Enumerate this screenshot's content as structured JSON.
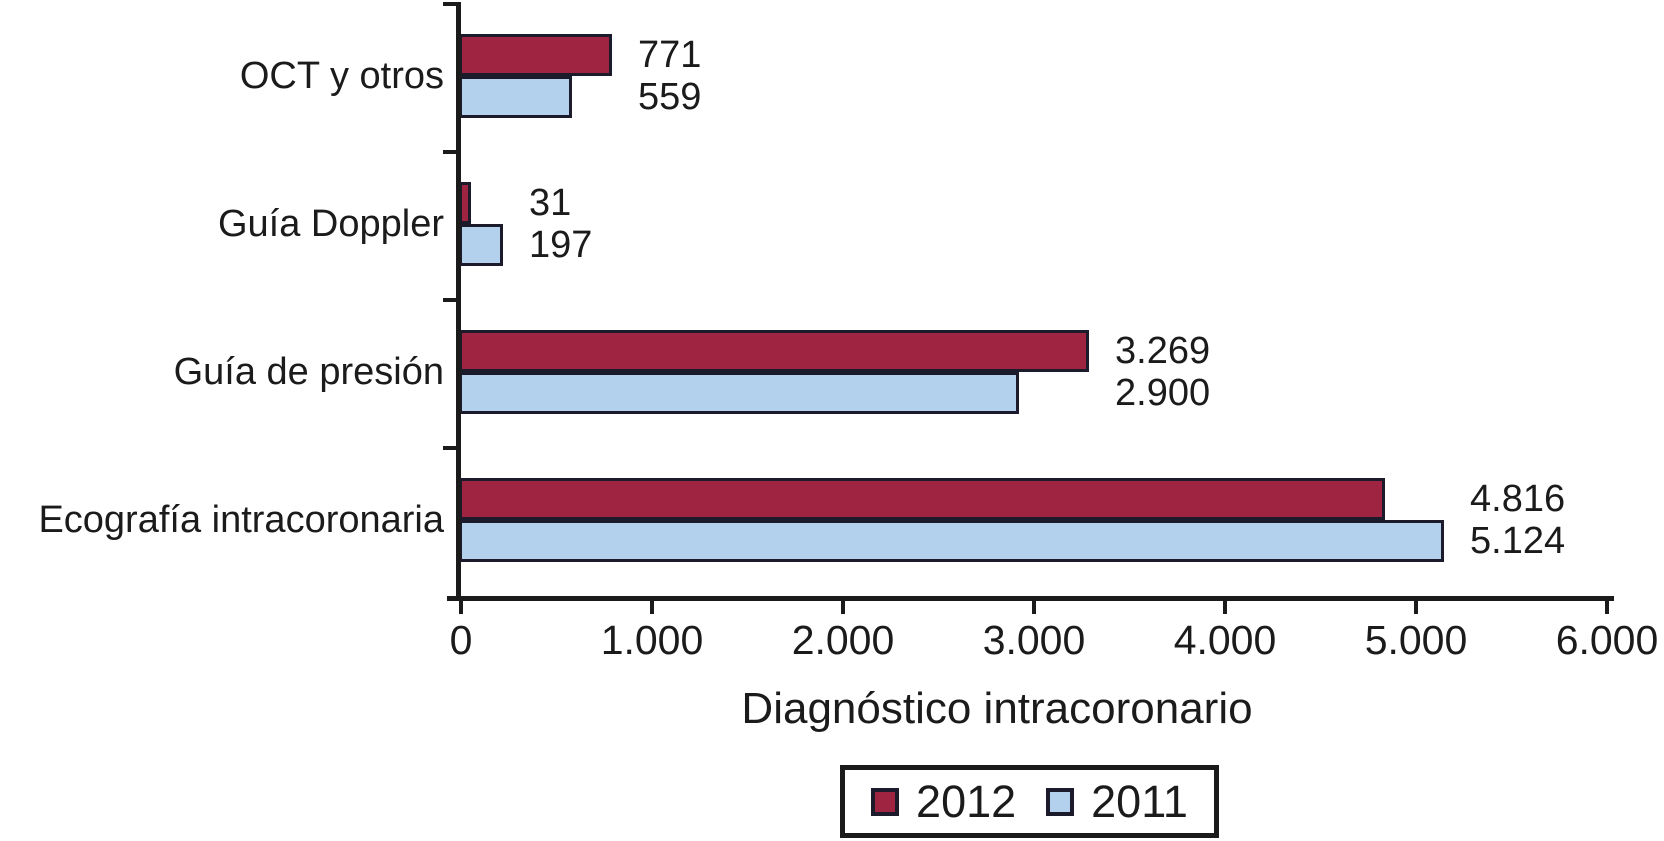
{
  "chart_data": {
    "type": "bar",
    "orientation": "horizontal",
    "title": "",
    "xlabel": "Diagnóstico intracoronario",
    "ylabel": "",
    "xlim": [
      0,
      6000
    ],
    "grid": false,
    "legend_position": "bottom",
    "background_color": "#ffffff",
    "axis_color": "#1b1b1b",
    "bar_border_color": "#1c1b2c",
    "categories": [
      "OCT y otros",
      "Guía Doppler",
      "Guía de presión",
      "Ecografía intracoronaria"
    ],
    "series": [
      {
        "name": "2012",
        "color": "#9F2442",
        "values": [
          771,
          31,
          3269,
          4816
        ],
        "value_labels": [
          "771",
          "31",
          "3.269",
          "4.816"
        ]
      },
      {
        "name": "2011",
        "color": "#B3D0EC",
        "values": [
          559,
          197,
          2900,
          5124
        ],
        "value_labels": [
          "559",
          "197",
          "2.900",
          "5.124"
        ]
      }
    ],
    "x_ticks": [
      {
        "value": 0,
        "label": "0"
      },
      {
        "value": 1000,
        "label": "1.000"
      },
      {
        "value": 2000,
        "label": "2.000"
      },
      {
        "value": 3000,
        "label": "3.000"
      },
      {
        "value": 4000,
        "label": "4.000"
      },
      {
        "value": 5000,
        "label": "5.000"
      },
      {
        "value": 6000,
        "label": "6.000"
      }
    ]
  }
}
